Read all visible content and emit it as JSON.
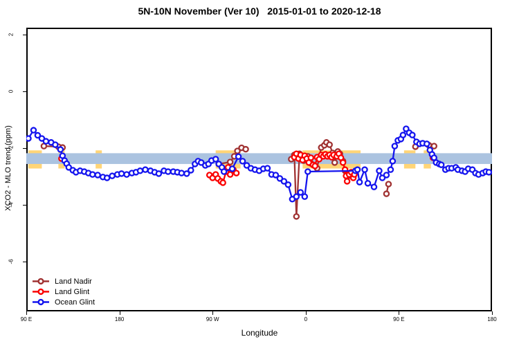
{
  "title": "5N-10N November (Ver 10)   2015-01-01 to 2020-12-18",
  "axes": {
    "x": {
      "label": "Longitude",
      "range": [
        0,
        450
      ],
      "ticks": [
        {
          "pos": 0,
          "label": "90 E"
        },
        {
          "pos": 90,
          "label": "180"
        },
        {
          "pos": 180,
          "label": "90 W"
        },
        {
          "pos": 270,
          "label": "0"
        },
        {
          "pos": 360,
          "label": "90 E"
        },
        {
          "pos": 450,
          "label": "180"
        }
      ]
    },
    "y": {
      "label": "XCO2 - MLO trend (ppm)",
      "range": [
        2.244,
        -7.756
      ],
      "ticks": [
        2,
        0,
        -2,
        -4,
        -6
      ]
    }
  },
  "legend": {
    "items": [
      {
        "label": "Land Nadir",
        "color": "#A03232"
      },
      {
        "label": "Land Glint",
        "color": "#FA0000"
      },
      {
        "label": "Ocean Glint",
        "color": "#1414EE"
      }
    ]
  },
  "chart_data": {
    "type": "line",
    "x_range": [
      0,
      450
    ],
    "y_range": [
      2.244,
      -7.756
    ],
    "band": {
      "color": "#ABC3E0",
      "y_top": -2.18,
      "y_bottom": -2.56
    },
    "highlight": {
      "color": "#FFD577",
      "y_top": -2.08,
      "y_bottom": -2.72,
      "segments": [
        [
          2,
          15
        ],
        [
          31,
          37
        ],
        [
          67,
          73
        ],
        [
          183,
          207
        ],
        [
          267,
          323
        ],
        [
          365,
          376
        ],
        [
          384,
          391
        ]
      ]
    },
    "series": [
      {
        "name": "Land Nadir",
        "color": "#A03232",
        "segments": [
          [
            [
              17,
              -1.93
            ],
            [
              31,
              -1.95
            ],
            [
              35,
              -1.98
            ]
          ],
          [
            [
              186,
              -2.56
            ],
            [
              197,
              -2.49
            ],
            [
              201,
              -2.29
            ],
            [
              204,
              -2.1
            ],
            [
              208,
              -1.99
            ],
            [
              212,
              -2.04
            ]
          ],
          [
            [
              256,
              -2.39
            ],
            [
              259,
              -2.24
            ],
            [
              261,
              -4.41
            ],
            [
              264,
              -2.2
            ],
            [
              268,
              -2.44
            ],
            [
              272,
              -2.29
            ],
            [
              275,
              -2.54
            ],
            [
              278,
              -2.61
            ],
            [
              281,
              -2.71
            ],
            [
              283,
              -2.32
            ],
            [
              285,
              -1.98
            ],
            [
              288,
              -1.9
            ],
            [
              290,
              -1.8
            ],
            [
              293,
              -1.88
            ],
            [
              296,
              -2.17
            ],
            [
              298,
              -2.51
            ],
            [
              301,
              -2.12
            ],
            [
              303,
              -2.2
            ],
            [
              306,
              -2.46
            ],
            [
              308,
              -2.8
            ],
            [
              310,
              -3.02
            ]
          ],
          [
            [
              348,
              -3.61
            ],
            [
              350,
              -3.27
            ]
          ],
          [
            [
              376,
              -1.95
            ]
          ],
          [
            [
              389,
              -1.9
            ],
            [
              394,
              -1.93
            ]
          ]
        ]
      },
      {
        "name": "Land Glint",
        "color": "#FA0000",
        "segments": [
          [
            [
              34,
              -2.37
            ]
          ],
          [
            [
              177,
              -2.95
            ],
            [
              180,
              -3.05
            ],
            [
              183,
              -2.93
            ],
            [
              185,
              -3.07
            ],
            [
              188,
              -3.17
            ],
            [
              190,
              -3.22
            ],
            [
              193,
              -2.83
            ],
            [
              195,
              -2.68
            ],
            [
              197,
              -2.93
            ],
            [
              200,
              -2.76
            ],
            [
              203,
              -2.88
            ]
          ],
          [
            [
              259,
              -2.32
            ],
            [
              261,
              -2.2
            ],
            [
              263,
              -2.37
            ],
            [
              265,
              -2.24
            ],
            [
              267,
              -2.42
            ],
            [
              269,
              -2.27
            ],
            [
              271,
              -2.37
            ],
            [
              273,
              -2.51
            ],
            [
              275,
              -2.34
            ],
            [
              277,
              -2.59
            ],
            [
              279,
              -2.63
            ],
            [
              281,
              -2.32
            ],
            [
              283,
              -2.39
            ],
            [
              285,
              -2.24
            ],
            [
              287,
              -2.29
            ],
            [
              289,
              -2.22
            ],
            [
              291,
              -2.29
            ],
            [
              293,
              -2.24
            ],
            [
              295,
              -2.32
            ],
            [
              297,
              -2.24
            ],
            [
              300,
              -2.29
            ],
            [
              302,
              -2.2
            ],
            [
              304,
              -2.34
            ],
            [
              306,
              -2.51
            ],
            [
              308,
              -2.76
            ],
            [
              309,
              -2.98
            ],
            [
              310,
              -3.17
            ],
            [
              312,
              -2.93
            ],
            [
              314,
              -2.85
            ],
            [
              316,
              -3.05
            ],
            [
              317,
              -2.93
            ]
          ],
          [
            [
              393,
              -2.34
            ]
          ]
        ]
      },
      {
        "name": "Ocean Glint",
        "color": "#1414EE",
        "segments": [
          [
            [
              2,
              -1.66
            ],
            [
              7,
              -1.37
            ],
            [
              11,
              -1.55
            ],
            [
              15,
              -1.66
            ],
            [
              19,
              -1.76
            ],
            [
              24,
              -1.8
            ],
            [
              28,
              -1.88
            ],
            [
              33,
              -2.05
            ],
            [
              35,
              -2.27
            ],
            [
              37,
              -2.44
            ],
            [
              39,
              -2.55
            ],
            [
              41,
              -2.68
            ],
            [
              45,
              -2.78
            ],
            [
              48,
              -2.85
            ],
            [
              52,
              -2.8
            ],
            [
              56,
              -2.83
            ],
            [
              60,
              -2.88
            ],
            [
              64,
              -2.93
            ],
            [
              69,
              -2.95
            ],
            [
              74,
              -3.02
            ],
            [
              78,
              -3.05
            ],
            [
              83,
              -2.98
            ],
            [
              88,
              -2.93
            ],
            [
              92,
              -2.9
            ],
            [
              97,
              -2.93
            ],
            [
              102,
              -2.88
            ],
            [
              106,
              -2.85
            ],
            [
              110,
              -2.8
            ],
            [
              115,
              -2.76
            ],
            [
              120,
              -2.8
            ],
            [
              124,
              -2.85
            ],
            [
              128,
              -2.9
            ],
            [
              133,
              -2.8
            ],
            [
              137,
              -2.83
            ],
            [
              142,
              -2.83
            ],
            [
              146,
              -2.85
            ],
            [
              150,
              -2.88
            ],
            [
              155,
              -2.9
            ],
            [
              159,
              -2.78
            ],
            [
              163,
              -2.56
            ],
            [
              166,
              -2.46
            ],
            [
              169,
              -2.51
            ],
            [
              173,
              -2.61
            ],
            [
              176,
              -2.56
            ],
            [
              179,
              -2.44
            ],
            [
              183,
              -2.39
            ],
            [
              186,
              -2.56
            ],
            [
              189,
              -2.68
            ],
            [
              191,
              -2.83
            ],
            [
              199,
              -2.73
            ],
            [
              205,
              -2.3
            ],
            [
              209,
              -2.46
            ],
            [
              213,
              -2.61
            ],
            [
              217,
              -2.71
            ],
            [
              221,
              -2.76
            ],
            [
              225,
              -2.8
            ],
            [
              229,
              -2.73
            ],
            [
              233,
              -2.71
            ],
            [
              237,
              -2.93
            ],
            [
              241,
              -2.95
            ],
            [
              245,
              -3.07
            ],
            [
              249,
              -3.17
            ],
            [
              253,
              -3.29
            ],
            [
              257,
              -3.8
            ],
            [
              261,
              -3.71
            ],
            [
              265,
              -3.56
            ],
            [
              269,
              -3.71
            ],
            [
              272,
              -2.83
            ],
            [
              318,
              -2.8
            ],
            [
              320,
              -2.76
            ],
            [
              322,
              -3.2
            ],
            [
              327,
              -2.76
            ],
            [
              330,
              -3.24
            ],
            [
              336,
              -3.37
            ],
            [
              341,
              -2.8
            ],
            [
              344,
              -3.05
            ],
            [
              348,
              -2.95
            ],
            [
              352,
              -2.76
            ],
            [
              354,
              -2.46
            ],
            [
              356,
              -1.93
            ],
            [
              359,
              -1.73
            ],
            [
              362,
              -1.68
            ],
            [
              364,
              -1.54
            ],
            [
              367,
              -1.32
            ],
            [
              370,
              -1.46
            ],
            [
              373,
              -1.54
            ],
            [
              377,
              -1.78
            ],
            [
              380,
              -1.85
            ],
            [
              383,
              -1.83
            ],
            [
              387,
              -1.85
            ],
            [
              390,
              -2.07
            ],
            [
              392,
              -2.22
            ],
            [
              394,
              -2.34
            ],
            [
              396,
              -2.51
            ],
            [
              399,
              -2.56
            ],
            [
              401,
              -2.59
            ],
            [
              405,
              -2.76
            ],
            [
              408,
              -2.71
            ],
            [
              411,
              -2.71
            ],
            [
              415,
              -2.68
            ],
            [
              417,
              -2.76
            ],
            [
              421,
              -2.8
            ],
            [
              424,
              -2.83
            ],
            [
              427,
              -2.73
            ],
            [
              431,
              -2.76
            ],
            [
              434,
              -2.88
            ],
            [
              437,
              -2.93
            ],
            [
              441,
              -2.88
            ],
            [
              444,
              -2.83
            ],
            [
              447,
              -2.85
            ]
          ]
        ]
      }
    ]
  }
}
